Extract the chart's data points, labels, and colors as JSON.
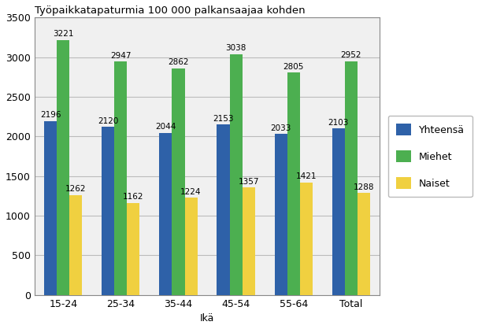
{
  "title": "Työpaikkatapaturmia 100 000 palkansaajaa kohden",
  "xlabel": "Ikä",
  "categories": [
    "15-24",
    "25-34",
    "35-44",
    "45-54",
    "55-64",
    "Total"
  ],
  "series": {
    "Yhteensä": [
      2196,
      2120,
      2044,
      2153,
      2033,
      2103
    ],
    "Miehet": [
      3221,
      2947,
      2862,
      3038,
      2805,
      2952
    ],
    "Naiset": [
      1262,
      1162,
      1224,
      1357,
      1421,
      1288
    ]
  },
  "colors": {
    "Yhteensä": "#2E61A8",
    "Miehet": "#4CAF50",
    "Naiset": "#F0D040"
  },
  "ylim": [
    0,
    3500
  ],
  "yticks": [
    0,
    500,
    1000,
    1500,
    2000,
    2500,
    3000,
    3500
  ],
  "bar_width": 0.22,
  "legend_labels": [
    "Yhteensä",
    "Miehet",
    "Naiset"
  ],
  "title_fontsize": 9.5,
  "label_fontsize": 9,
  "tick_fontsize": 9,
  "value_fontsize": 7.5,
  "background_color": "#FFFFFF",
  "plot_bg_color": "#F0F0F0",
  "grid_color": "#BBBBBB"
}
